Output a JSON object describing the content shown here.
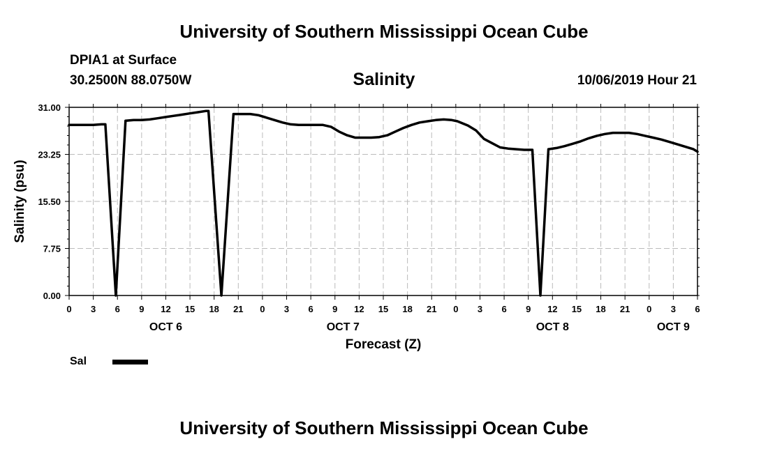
{
  "header": {
    "title": "University of Southern Mississippi Ocean Cube",
    "station": "DPIA1 at Surface",
    "coordinates": "30.2500N 88.0750W",
    "timestamp": "10/06/2019 Hour 21"
  },
  "footer": {
    "title": "University of Southern Mississippi Ocean Cube"
  },
  "colors": {
    "line": "#000000",
    "grid": "#bbbbbb",
    "background": "#ffffff"
  },
  "chart_data": {
    "type": "line",
    "title": "Salinity",
    "xlabel": "Forecast (Z)",
    "ylabel": "Salinity (psu)",
    "ylim": [
      0,
      31
    ],
    "xlim": [
      0,
      78
    ],
    "x_units": "hours since 2019-10-06 00Z",
    "grid": true,
    "legend_position": "bottom-left",
    "y_ticks": [
      "0.00",
      "7.75",
      "15.50",
      "23.25",
      "31.00"
    ],
    "x_tick_labels": [
      "0",
      "3",
      "6",
      "9",
      "12",
      "15",
      "18",
      "21",
      "0",
      "3",
      "6",
      "9",
      "12",
      "15",
      "18",
      "21",
      "0",
      "3",
      "6",
      "9",
      "12",
      "15",
      "18",
      "21",
      "0",
      "3",
      "6"
    ],
    "day_labels": [
      {
        "label": "OCT 6",
        "hour": 12
      },
      {
        "label": "OCT 7",
        "hour": 34
      },
      {
        "label": "OCT 8",
        "hour": 60
      },
      {
        "label": "OCT 9",
        "hour": 75
      }
    ],
    "series": [
      {
        "name": "Sal",
        "x": [
          0,
          1,
          2,
          3,
          4,
          4.5,
          5.8,
          7,
          8,
          9,
          10,
          11,
          12,
          13,
          14,
          15,
          16,
          17,
          17.3,
          18.9,
          20.4,
          21.5,
          22.5,
          23.5,
          24.5,
          25.5,
          26.5,
          27.5,
          28.5,
          29.5,
          30.5,
          31.5,
          32.5,
          33.5,
          34.5,
          35.5,
          36.5,
          37.5,
          38.5,
          39.5,
          40.5,
          41.5,
          42.5,
          43.5,
          44.5,
          45.5,
          46.5,
          47.5,
          48.2,
          49.5,
          50.5,
          51.5,
          52.5,
          53.5,
          54.5,
          55.5,
          56.5,
          57.5,
          58.5,
          59.5,
          60.5,
          61.5,
          62.5,
          63.5,
          64.5,
          65.5,
          66.5,
          67.5,
          68.5,
          69.5,
          70.5,
          71.5,
          72.5,
          73.5,
          74.5,
          75.5,
          76.5,
          77.5,
          78
        ],
        "y": [
          28.1,
          28.1,
          28.1,
          28.1,
          28.2,
          28.2,
          0,
          28.8,
          28.9,
          28.9,
          29.0,
          29.2,
          29.4,
          29.6,
          29.8,
          30.0,
          30.2,
          30.4,
          30.4,
          0,
          29.9,
          29.9,
          29.9,
          29.7,
          29.3,
          28.9,
          28.5,
          28.2,
          28.1,
          28.1,
          28.1,
          28.1,
          27.8,
          27.0,
          26.4,
          26.0,
          26.0,
          26.0,
          26.1,
          26.4,
          27.0,
          27.6,
          28.1,
          28.5,
          28.7,
          28.9,
          29.0,
          28.9,
          28.7,
          28.0,
          27.2,
          25.8,
          25.1,
          24.4,
          24.2,
          24.1,
          24.0,
          24.0,
          0,
          24.1,
          24.3,
          24.6,
          25.0,
          25.4,
          25.9,
          26.3,
          26.6,
          26.8,
          26.8,
          26.8,
          26.6,
          26.3,
          26.0,
          25.7,
          25.3,
          24.9,
          24.5,
          24.1,
          23.7
        ]
      }
    ]
  }
}
